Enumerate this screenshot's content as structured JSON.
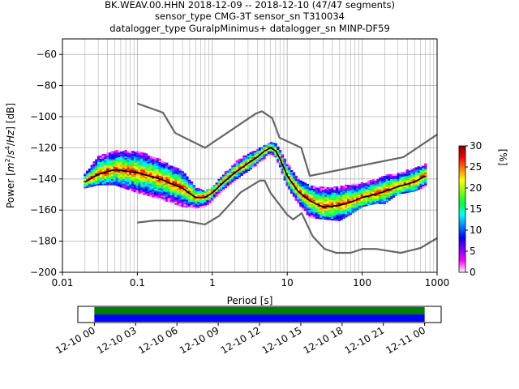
{
  "chart_data": [
    {
      "type": "heatmap",
      "subtype": "probabilistic-power-spectral-density",
      "title_lines": [
        "BK.WEAV.00.HHN   2018-12-09 -- 2018-12-10  (47/47 segments)",
        "sensor_type CMG-3T sensor_sn T310034",
        "datalogger_type GuralpMinimus+ datalogger_sn MINP-DF59"
      ],
      "xlabel": "Period [s]",
      "ylabel_parts": [
        "Power [",
        "m",
        "2",
        "/",
        "s",
        "4",
        "/",
        "Hz",
        "] [dB]"
      ],
      "xscale": "log",
      "xlim": [
        0.01,
        1000
      ],
      "ylim": [
        -200,
        -50
      ],
      "x_ticks": [
        0.01,
        0.1,
        1,
        10,
        100,
        1000
      ],
      "x_tick_labels": [
        "0.01",
        "0.1",
        "1",
        "10",
        "100",
        "1000"
      ],
      "y_ticks": [
        -200,
        -180,
        -160,
        -140,
        -120,
        -100,
        -80,
        -60
      ],
      "y_tick_labels": [
        "−200",
        "−180",
        "−160",
        "−140",
        "−120",
        "−100",
        "−80",
        "−60"
      ],
      "grid": true,
      "colorbar": {
        "label": "[%]",
        "range": [
          0,
          30
        ],
        "ticks": [
          0,
          5,
          10,
          15,
          20,
          25,
          30
        ],
        "tick_labels": [
          "0",
          "5",
          "10",
          "15",
          "20",
          "25",
          "30"
        ],
        "colormap": [
          "#ffffff",
          "#ff00ff",
          "#8000ff",
          "#0000ff",
          "#0080ff",
          "#00ffff",
          "#00ff40",
          "#80ff00",
          "#ffff00",
          "#ff8000",
          "#ff0000",
          "#800000"
        ]
      },
      "series": [
        {
          "name": "",
          "role": "noise-model-high",
          "color": "#666666",
          "x": [
            0.1,
            0.22,
            0.32,
            0.8,
            3.8,
            4.6,
            6.3,
            7.9,
            15.4,
            20,
            354.8,
            1000
          ],
          "y": [
            -91.5,
            -97.4,
            -110.5,
            -120,
            -98,
            -96.5,
            -101,
            -113.5,
            -120,
            -138,
            -126,
            -111.5
          ]
        },
        {
          "name": "",
          "role": "noise-model-low",
          "color": "#666666",
          "x": [
            0.1,
            0.17,
            0.4,
            0.8,
            1.24,
            2.4,
            4.3,
            5,
            6,
            10,
            12,
            15.6,
            21.9,
            31.6,
            45,
            70,
            101,
            154,
            328,
            600,
            1000
          ],
          "y": [
            -168,
            -166.7,
            -166.7,
            -169.2,
            -163.7,
            -148.6,
            -141.1,
            -141.1,
            -149,
            -163,
            -166,
            -162,
            -177,
            -185,
            -187.5,
            -187.5,
            -185,
            -185,
            -187.5,
            -184.4,
            -178
          ]
        },
        {
          "name": "",
          "role": "mode",
          "color": "#000000",
          "x": [
            0.02,
            0.03,
            0.05,
            0.1,
            0.2,
            0.4,
            0.6,
            0.8,
            1,
            1.5,
            2,
            3,
            4,
            5,
            6,
            7,
            8,
            10,
            14,
            20,
            30,
            50,
            70,
            100,
            150,
            200,
            300,
            500,
            700
          ],
          "y": [
            -142,
            -137,
            -134,
            -136,
            -140,
            -146,
            -152,
            -152,
            -149,
            -141,
            -136,
            -130,
            -126,
            -122,
            -120,
            -122,
            -127,
            -138,
            -148,
            -154,
            -158,
            -157,
            -155,
            -152,
            -150,
            -148,
            -145,
            -142,
            -138
          ]
        }
      ],
      "density_band": {
        "x": [
          0.02,
          0.03,
          0.05,
          0.1,
          0.2,
          0.4,
          0.6,
          0.8,
          1,
          1.5,
          2,
          3,
          4,
          5,
          6,
          7,
          8,
          10,
          14,
          20,
          30,
          50,
          70,
          100,
          150,
          200,
          300,
          500,
          700
        ],
        "y_upper": [
          -137,
          -126,
          -122,
          -122,
          -128,
          -135,
          -146,
          -148,
          -146,
          -136,
          -130,
          -124,
          -121,
          -119,
          -117,
          -118,
          -122,
          -130,
          -140,
          -145,
          -146,
          -145,
          -144,
          -143,
          -141,
          -138,
          -137,
          -133,
          -131
        ],
        "y_lower": [
          -146,
          -144,
          -144,
          -149,
          -153,
          -158,
          -159,
          -158,
          -154,
          -146,
          -141,
          -135,
          -131,
          -127,
          -124,
          -127,
          -133,
          -145,
          -156,
          -165,
          -166,
          -167,
          -163,
          -158,
          -156,
          -156,
          -150,
          -148,
          -145
        ]
      }
    },
    {
      "type": "timeline",
      "x_tick_labels": [
        "12-10 00",
        "12-10 03",
        "12-10 06",
        "12-10 09",
        "12-10 12",
        "12-10 15",
        "12-10 18",
        "12-10 21",
        "12-11 00"
      ],
      "x_hours": [
        0,
        3,
        6,
        9,
        12,
        15,
        18,
        21,
        24
      ],
      "xlim_hours": [
        -1.2,
        25.2
      ],
      "bands": [
        {
          "start_hour": 0,
          "end_hour": 24,
          "color": "#008000"
        },
        {
          "start_hour": 0,
          "end_hour": 24,
          "color": "#0000ff"
        }
      ]
    }
  ]
}
